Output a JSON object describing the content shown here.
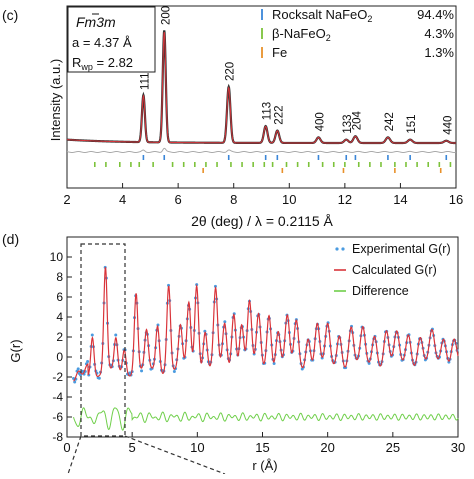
{
  "panel_c": {
    "label": "(c)",
    "info": {
      "space_group": "Fm3m",
      "space_group_bar_char": "3",
      "lattice_label": "a = 4.37 Å",
      "rwp_prefix": "R",
      "rwp_sub": "wp",
      "rwp_value": " = 2.82"
    },
    "legend": [
      {
        "name": "Rocksalt NaFeO",
        "sub": "2",
        "percent": "94.4%",
        "color": "#3a86d8"
      },
      {
        "name": "β-NaFeO",
        "sub": "2",
        "percent": "4.3%",
        "color": "#7cc23a"
      },
      {
        "name": "Fe",
        "sub": "",
        "percent": "1.3%",
        "color": "#e8912a"
      }
    ],
    "peak_labels": [
      {
        "text": "111",
        "x": 4.75
      },
      {
        "text": "200",
        "x": 5.5
      },
      {
        "text": "220",
        "x": 7.82
      },
      {
        "text": "113",
        "x": 9.15
      },
      {
        "text": "222",
        "x": 9.57
      },
      {
        "text": "400",
        "x": 11.05
      },
      {
        "text": "133",
        "x": 12.05
      },
      {
        "text": "204",
        "x": 12.38
      },
      {
        "text": "242",
        "x": 13.55
      },
      {
        "text": "151",
        "x": 14.35
      },
      {
        "text": "440",
        "x": 15.65
      }
    ]
  },
  "panel_d": {
    "label": "(d)"
  },
  "chart_data": [
    {
      "type": "line",
      "panel": "(c)",
      "xlabel": "2θ (deg) / λ = 0.2115 Å",
      "ylabel": "Intensity  (a.u.)",
      "xlim": [
        2,
        16
      ],
      "x_ticks": [
        2,
        4,
        6,
        8,
        10,
        12,
        14,
        16
      ],
      "y_ticks_shown": false,
      "grid": false,
      "legend_position": "top-right",
      "peaks": [
        {
          "x": 4.75,
          "height": 0.42
        },
        {
          "x": 5.5,
          "height": 1.0
        },
        {
          "x": 7.82,
          "height": 0.5
        },
        {
          "x": 9.15,
          "height": 0.15
        },
        {
          "x": 9.57,
          "height": 0.11
        },
        {
          "x": 11.05,
          "height": 0.05
        },
        {
          "x": 12.05,
          "height": 0.03
        },
        {
          "x": 12.38,
          "height": 0.06
        },
        {
          "x": 13.55,
          "height": 0.05
        },
        {
          "x": 14.35,
          "height": 0.03
        },
        {
          "x": 15.65,
          "height": 0.02
        }
      ],
      "series": [
        {
          "name": "Experimental",
          "color": "#333333"
        },
        {
          "name": "Calculated",
          "color": "#d9343a"
        },
        {
          "name": "Difference",
          "color": "#aaaaaa"
        }
      ],
      "tick_rows": [
        {
          "phase": "Rocksalt NaFeO2",
          "color": "#3a86d8",
          "positions": [
            4.75,
            5.5,
            7.82,
            9.15,
            9.57,
            11.05,
            12.05,
            12.38,
            13.55,
            14.35,
            15.65
          ]
        },
        {
          "phase": "β-NaFeO2",
          "color": "#7cc23a",
          "positions": [
            3.0,
            3.4,
            3.9,
            4.3,
            4.6,
            5.1,
            5.8,
            6.2,
            6.6,
            7.0,
            7.4,
            7.9,
            8.3,
            8.7,
            9.1,
            9.4,
            9.9,
            10.3,
            10.7,
            11.2,
            11.6,
            12.0,
            12.5,
            12.9,
            13.3,
            13.8,
            14.2,
            14.6,
            15.0,
            15.4,
            15.8
          ]
        },
        {
          "phase": "Fe",
          "color": "#e8912a",
          "positions": [
            6.9,
            9.75,
            11.95,
            13.8,
            15.45
          ]
        }
      ]
    },
    {
      "type": "line",
      "panel": "(d)",
      "xlabel": "r (Å)",
      "ylabel": "G(r)",
      "xlim": [
        0,
        30
      ],
      "ylim": [
        -8,
        12
      ],
      "x_ticks": [
        0,
        5,
        10,
        15,
        20,
        25,
        30
      ],
      "y_ticks": [
        -8,
        -6,
        -4,
        -2,
        0,
        2,
        4,
        6,
        8,
        10
      ],
      "grid": false,
      "legend_position": "top-right",
      "series": [
        {
          "name": "Experimental G(r)",
          "color": "#4a9be0",
          "style": "markers"
        },
        {
          "name": "Calculated G(r)",
          "color": "#d9343a",
          "style": "line"
        },
        {
          "name": "Difference",
          "color": "#6fcf4a",
          "style": "line",
          "offset": -6
        }
      ],
      "peaks": [
        {
          "r": 1.95,
          "g": 3.0
        },
        {
          "r": 2.95,
          "g": 9.4
        },
        {
          "r": 3.75,
          "g": 2.2
        },
        {
          "r": 4.4,
          "g": 1.5
        },
        {
          "r": 5.3,
          "g": 7.0
        },
        {
          "r": 6.1,
          "g": 2.8
        },
        {
          "r": 6.95,
          "g": 3.6
        },
        {
          "r": 7.8,
          "g": 7.8
        },
        {
          "r": 8.7,
          "g": 3.2
        },
        {
          "r": 9.35,
          "g": 5.6
        },
        {
          "r": 9.95,
          "g": 7.7
        },
        {
          "r": 10.6,
          "g": 3.0
        },
        {
          "r": 11.4,
          "g": 6.8
        },
        {
          "r": 12.1,
          "g": 3.4
        },
        {
          "r": 12.8,
          "g": 4.8
        },
        {
          "r": 13.4,
          "g": 3.6
        },
        {
          "r": 14.0,
          "g": 5.5
        },
        {
          "r": 14.7,
          "g": 4.2
        },
        {
          "r": 15.5,
          "g": 4.6
        },
        {
          "r": 16.2,
          "g": 2.8
        },
        {
          "r": 16.9,
          "g": 3.9
        },
        {
          "r": 17.6,
          "g": 3.6
        },
        {
          "r": 18.5,
          "g": 2.2
        },
        {
          "r": 19.2,
          "g": 3.3
        },
        {
          "r": 20.0,
          "g": 3.0
        },
        {
          "r": 20.9,
          "g": 2.4
        },
        {
          "r": 21.8,
          "g": 3.0
        },
        {
          "r": 22.7,
          "g": 2.6
        },
        {
          "r": 23.6,
          "g": 2.3
        },
        {
          "r": 24.5,
          "g": 2.6
        },
        {
          "r": 25.3,
          "g": 2.1
        },
        {
          "r": 26.2,
          "g": 2.3
        },
        {
          "r": 27.1,
          "g": 2.0
        },
        {
          "r": 28.0,
          "g": 2.2
        },
        {
          "r": 28.9,
          "g": 1.8
        },
        {
          "r": 29.7,
          "g": 1.9
        }
      ]
    }
  ]
}
